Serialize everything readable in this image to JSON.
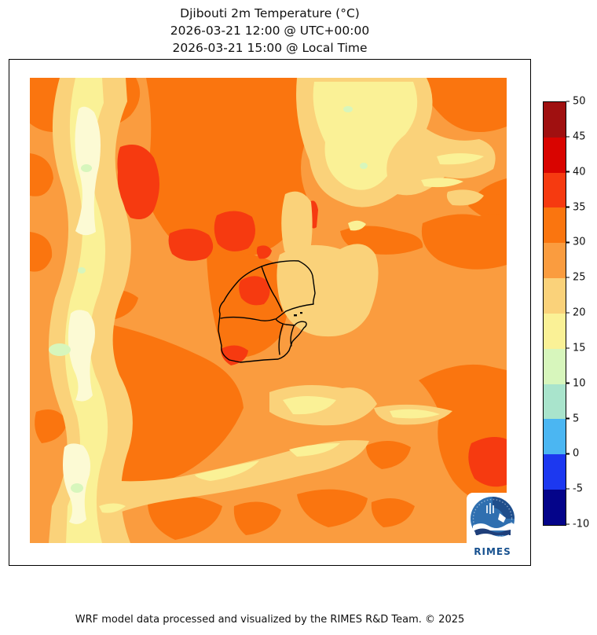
{
  "title": {
    "line1": "Djibouti 2m Temperature (°C)",
    "line2": "2026-03-21 12:00 @ UTC+00:00",
    "line3": "2026-03-21 15:00 @ Local Time"
  },
  "colorbar": {
    "ticks": [
      "50",
      "45",
      "40",
      "35",
      "30",
      "25",
      "20",
      "15",
      "10",
      "5",
      "0",
      "-5",
      "-10"
    ],
    "segments_top_to_bottom": [
      "#A01010",
      "#D90400",
      "#F63A10",
      "#FA750F",
      "#FA9C3F",
      "#FAD27A",
      "#FAF196",
      "#D7F6BC",
      "#A9E4CC",
      "#4BB6F2",
      "#1C38F0",
      "#04048A"
    ]
  },
  "map": {
    "palette": {
      "t35_40": "#F63A10",
      "t30_35": "#FA750F",
      "t25_30": "#FA9C3F",
      "t20_25": "#FAD27A",
      "t15_20": "#FAF196",
      "t10_15": "#D7F6BC"
    },
    "outline_color": "#000000",
    "region_label": "Djibouti"
  },
  "logo": {
    "text": "RIMES"
  },
  "footer": {
    "credit": "WRF model data processed and visualized by the RIMES R&D Team. © 2025"
  },
  "chart_data": {
    "type": "heatmap",
    "title": "Djibouti 2m Temperature (°C)",
    "timestamp_utc": "2026-03-21 12:00 @ UTC+00:00",
    "timestamp_local": "2026-03-21 15:00 @ Local Time",
    "unit": "°C",
    "colorbar_levels": [
      -10,
      -5,
      0,
      5,
      10,
      15,
      20,
      25,
      30,
      35,
      40,
      45,
      50
    ],
    "colorbar_colors_low_to_high": [
      "#04048A",
      "#1C38F0",
      "#4BB6F2",
      "#A9E4CC",
      "#D7F6BC",
      "#FAF196",
      "#FAD27A",
      "#FA9C3F",
      "#FA750F",
      "#F63A10",
      "#D90400",
      "#A01010"
    ],
    "visible_temperature_range": [
      10,
      40
    ],
    "region": "Djibouti and surroundings",
    "overlay": "Djibouti national and district administrative boundaries",
    "legend_position": "right"
  }
}
